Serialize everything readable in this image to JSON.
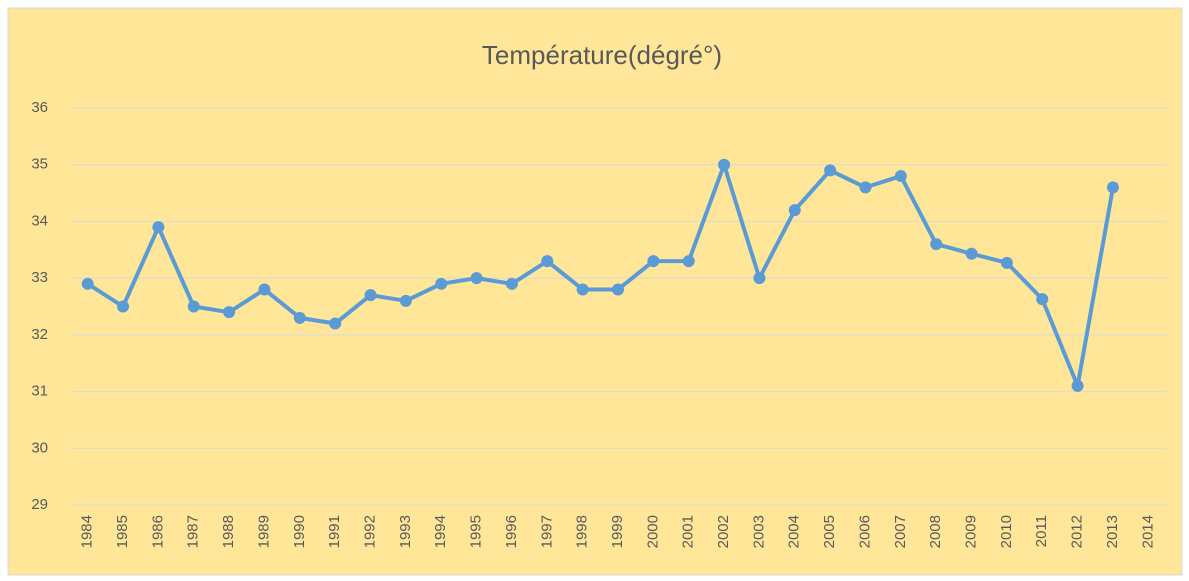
{
  "chart_data": {
    "type": "line",
    "title": "Température(dégré°)",
    "categories": [
      "1984",
      "1985",
      "1986",
      "1987",
      "1988",
      "1989",
      "1990",
      "1991",
      "1992",
      "1993",
      "1994",
      "1995",
      "1996",
      "1997",
      "1998",
      "1999",
      "2000",
      "2001",
      "2002",
      "2003",
      "2004",
      "2005",
      "2006",
      "2007",
      "2008",
      "2009",
      "2010",
      "2011",
      "2012",
      "2013",
      "2014"
    ],
    "series": [
      {
        "name": "Température(dégré°)",
        "color": "#5b9bd5",
        "values": [
          32.9,
          32.5,
          33.9,
          32.5,
          32.4,
          32.8,
          32.3,
          32.2,
          32.7,
          32.6,
          32.9,
          33.0,
          32.9,
          33.3,
          32.8,
          32.8,
          33.3,
          33.3,
          35.0,
          33.0,
          34.2,
          34.9,
          34.6,
          34.8,
          33.6,
          33.43,
          33.27,
          32.63,
          31.1,
          34.6,
          null
        ]
      }
    ],
    "ylim": [
      29,
      36
    ],
    "yticks": [
      29,
      30,
      31,
      32,
      33,
      34,
      35,
      36
    ],
    "grid": true
  }
}
